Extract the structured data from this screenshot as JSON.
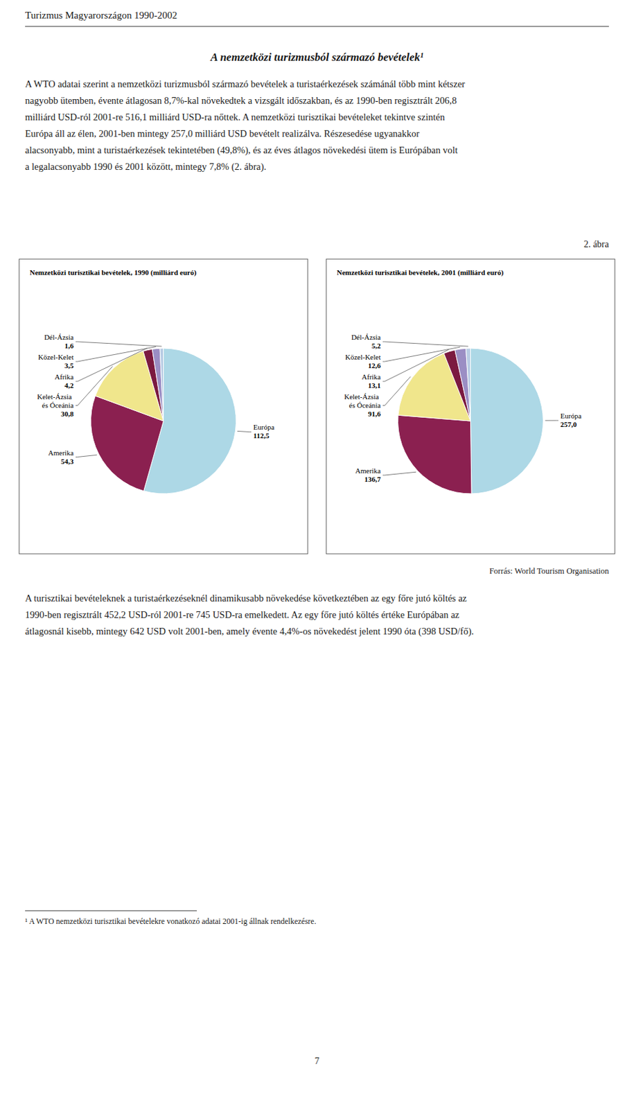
{
  "page_title": "Turizmus Magyarországon 1990-2002",
  "section_title": "A nemzetközi turizmusból származó bevételek¹",
  "paragraph_1": [
    "A WTO adatai szerint a nemzetközi turizmusból származó bevételek a turistaérkezések számánál több mint kétszer",
    "nagyobb ütemben, évente átlagosan 8,7%-kal növekedtek a vizsgált időszakban, és az 1990-ben regisztrált 206,8",
    "milliárd USD-ról 2001-re 516,1 milliárd USD-ra nőttek. A nemzetközi turisztikai bevételeket tekintve szintén",
    "Európa áll az élen, 2001-ben mintegy 257,0 milliárd USD bevételt realizálva. Részesedése ugyanakkor",
    "alacsonyabb, mint a turistaérkezések tekintetében (49,8%), és az éves átlagos növekedési ütem is Európában volt",
    "a legalacsonyabb 1990 és 2001 között, mintegy 7,8% (2. ábra)."
  ],
  "figure_label": "2. ábra",
  "chart_data": [
    {
      "type": "pie",
      "title": "Nemzetközi turisztikai bevételek, 1990 (milliárd euró)",
      "categories": [
        "Európa",
        "Amerika",
        "Kelet-Ázsia és Óceánia",
        "Afrika",
        "Közel-Kelet",
        "Dél-Ázsia"
      ],
      "values": [
        112.5,
        54.3,
        30.8,
        4.2,
        3.5,
        1.6
      ],
      "value_labels": [
        "112,5",
        "54,3",
        "30,8",
        "4,2",
        "3,5",
        "1,6"
      ],
      "colors": [
        "#add8e6",
        "#8b2050",
        "#f0e68c",
        "#7b1a40",
        "#9b8ec4",
        "#b8cce4"
      ],
      "data_labels": true
    },
    {
      "type": "pie",
      "title": "Nemzetközi turisztikai bevételek, 2001 (milliárd euró)",
      "categories": [
        "Európa",
        "Amerika",
        "Kelet-Ázsia és Óceánia",
        "Afrika",
        "Közel-Kelet",
        "Dél-Ázsia"
      ],
      "values": [
        257.0,
        136.7,
        91.6,
        13.1,
        12.6,
        5.2
      ],
      "value_labels": [
        "257,0",
        "136,7",
        "91,6",
        "13,1",
        "12,6",
        "5,2"
      ],
      "colors": [
        "#add8e6",
        "#8b2050",
        "#f0e68c",
        "#7b1a40",
        "#9b8ec4",
        "#b8cce4"
      ],
      "data_labels": true
    }
  ],
  "source": "Forrás: World Tourism Organisation",
  "paragraph_2": [
    "A turisztikai bevételeknek a turistaérkezéseknél dinamikusabb növekedése következtében az egy főre jutó költés az",
    "1990-ben regisztrált 452,2 USD-ról 2001-re 745 USD-ra emelkedett. Az egy főre jutó költés értéke Európában az",
    "átlagosnál kisebb, mintegy 642 USD volt 2001-ben, amely évente 4,4%-os növekedést jelent 1990 óta (398 USD/fő)."
  ],
  "footnote": "¹ A WTO nemzetközi turisztikai bevételekre vonatkozó adatai 2001-ig állnak rendelkezésre.",
  "page_number": "7"
}
